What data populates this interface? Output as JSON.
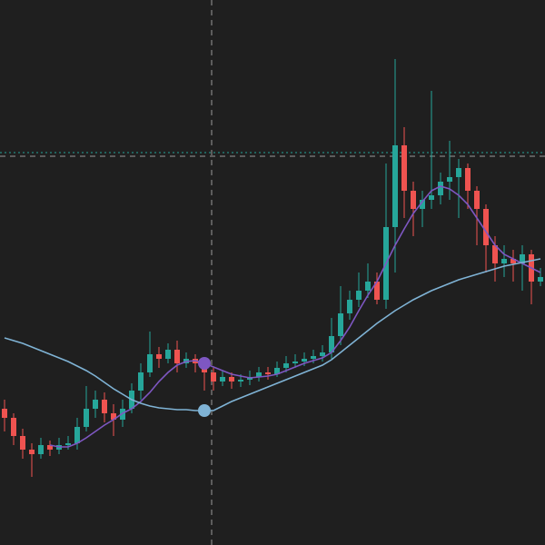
{
  "chart_data": {
    "type": "candlestick",
    "ylim": [
      0,
      600
    ],
    "up_color": "#26a69a",
    "down_color": "#ef5350",
    "open": [
      150,
      140,
      120,
      105,
      100,
      110,
      105,
      110,
      112,
      130,
      150,
      160,
      145,
      138,
      150,
      170,
      190,
      210,
      205,
      215,
      200,
      205,
      200,
      190,
      180,
      185,
      180,
      182,
      185,
      190,
      188,
      195,
      200,
      202,
      205,
      208,
      212,
      230,
      255,
      270,
      280,
      290,
      270,
      350,
      440,
      390,
      370,
      380,
      385,
      400,
      405,
      415,
      390,
      370,
      330,
      310,
      315,
      310,
      320,
      290
    ],
    "high": [
      160,
      145,
      128,
      112,
      118,
      115,
      118,
      120,
      140,
      175,
      170,
      168,
      155,
      160,
      178,
      200,
      235,
      218,
      222,
      225,
      212,
      210,
      205,
      195,
      192,
      190,
      188,
      192,
      196,
      196,
      202,
      208,
      210,
      212,
      215,
      220,
      250,
      285,
      280,
      300,
      310,
      300,
      420,
      535,
      460,
      400,
      390,
      500,
      410,
      445,
      425,
      420,
      395,
      375,
      340,
      330,
      325,
      330,
      325,
      305
    ],
    "low": [
      125,
      110,
      95,
      75,
      95,
      98,
      100,
      105,
      105,
      125,
      140,
      135,
      120,
      130,
      145,
      160,
      185,
      195,
      200,
      190,
      195,
      190,
      170,
      170,
      175,
      172,
      174,
      176,
      180,
      182,
      185,
      190,
      195,
      197,
      200,
      202,
      205,
      220,
      248,
      262,
      272,
      265,
      260,
      300,
      360,
      340,
      350,
      370,
      375,
      380,
      360,
      370,
      330,
      300,
      290,
      295,
      290,
      280,
      265,
      285
    ],
    "close": [
      140,
      120,
      105,
      100,
      110,
      105,
      110,
      112,
      130,
      150,
      160,
      145,
      138,
      150,
      170,
      190,
      210,
      205,
      215,
      200,
      205,
      200,
      190,
      180,
      185,
      180,
      182,
      185,
      190,
      188,
      195,
      200,
      202,
      205,
      208,
      212,
      230,
      255,
      270,
      280,
      290,
      270,
      350,
      440,
      390,
      370,
      380,
      385,
      400,
      405,
      415,
      390,
      370,
      330,
      310,
      315,
      310,
      320,
      290,
      295
    ],
    "lines": [
      {
        "color": "#7e57c2",
        "values": [
          null,
          null,
          null,
          null,
          null,
          110,
          108,
          108,
          112,
          118,
          125,
          132,
          138,
          145,
          150,
          158,
          168,
          180,
          190,
          198,
          202,
          203,
          200,
          196,
          192,
          188,
          186,
          184,
          185,
          186,
          188,
          192,
          196,
          200,
          203,
          206,
          212,
          225,
          240,
          258,
          275,
          290,
          310,
          330,
          348,
          365,
          378,
          390,
          395,
          392,
          385,
          375,
          360,
          345,
          330,
          320,
          315,
          310,
          305,
          300
        ]
      },
      {
        "color": "#7fb3d5",
        "values": [
          228,
          225,
          222,
          218,
          214,
          210,
          206,
          202,
          197,
          192,
          186,
          179,
          172,
          166,
          160,
          156,
          153,
          151,
          150,
          149,
          149,
          148,
          148,
          148,
          153,
          158,
          162,
          166,
          170,
          174,
          178,
          182,
          186,
          190,
          194,
          198,
          204,
          212,
          220,
          228,
          236,
          244,
          251,
          258,
          264,
          270,
          275,
          280,
          284,
          288,
          292,
          295,
          298,
          301,
          304,
          307,
          309,
          311,
          313,
          315
        ]
      }
    ]
  }
}
